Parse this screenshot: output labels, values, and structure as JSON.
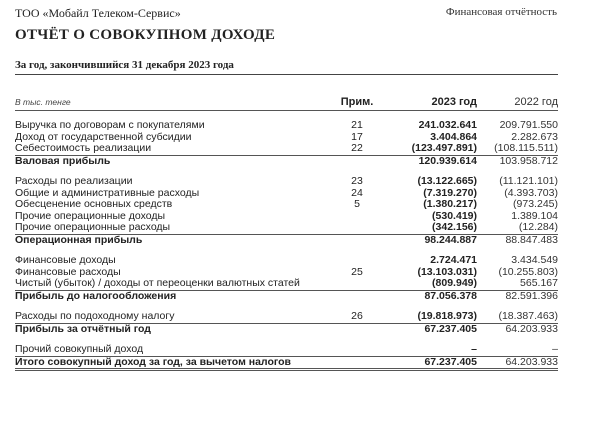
{
  "header": {
    "company": "ТОО «Мобайл Телеком-Сервис»",
    "section": "Финансовая отчётность"
  },
  "title": "ОТЧЁТ О СОВОКУПНОМ ДОХОДЕ",
  "subtitle": "За год, закончившийся 31 декабря 2023 года",
  "columns": {
    "unit": "В тыс. тенге",
    "note": "Прим.",
    "y2023": "2023 год",
    "y2022": "2022 год"
  },
  "rows": [
    {
      "label": "Выручка по договорам с покупателями",
      "note": "21",
      "y2023": "241.032.641",
      "y2022": "209.791.550"
    },
    {
      "label": "Доход от государственной субсидии",
      "note": "17",
      "y2023": "3.404.864",
      "y2022": "2.282.673"
    },
    {
      "label": "Себестоимость реализации",
      "note": "22",
      "y2023": "(123.497.891)",
      "y2022": "(108.115.511)"
    },
    {
      "label": "Валовая прибыль",
      "note": "",
      "y2023": "120.939.614",
      "y2022": "103.958.712"
    },
    {
      "label": "Расходы по реализации",
      "note": "23",
      "y2023": "(13.122.665)",
      "y2022": "(11.121.101)"
    },
    {
      "label": "Общие и административные расходы",
      "note": "24",
      "y2023": "(7.319.270)",
      "y2022": "(4.393.703)"
    },
    {
      "label": "Обесценение основных средств",
      "note": "5",
      "y2023": "(1.380.217)",
      "y2022": "(973.245)"
    },
    {
      "label": "Прочие операционные доходы",
      "note": "",
      "y2023": "(530.419)",
      "y2022": "1.389.104"
    },
    {
      "label": "Прочие операционные расходы",
      "note": "",
      "y2023": "(342.156)",
      "y2022": "(12.284)"
    },
    {
      "label": "Операционная прибыль",
      "note": "",
      "y2023": "98.244.887",
      "y2022": "88.847.483"
    },
    {
      "label": "Финансовые доходы",
      "note": "",
      "y2023": "2.724.471",
      "y2022": "3.434.549"
    },
    {
      "label": "Финансовые расходы",
      "note": "25",
      "y2023": "(13.103.031)",
      "y2022": "(10.255.803)"
    },
    {
      "label": "Чистый (убыток) / доходы от переоценки валютных статей",
      "note": "",
      "y2023": "(809.949)",
      "y2022": "565.167"
    },
    {
      "label": "Прибыль до налогообложения",
      "note": "",
      "y2023": "87.056.378",
      "y2022": "82.591.396"
    },
    {
      "label": "Расходы по подоходному налогу",
      "note": "26",
      "y2023": "(19.818.973)",
      "y2022": "(18.387.463)"
    },
    {
      "label": "Прибыль за отчётный год",
      "note": "",
      "y2023": "67.237.405",
      "y2022": "64.203.933"
    },
    {
      "label": "Прочий совокупный доход",
      "note": "",
      "y2023": "–",
      "y2022": "–"
    },
    {
      "label": "Итого совокупный доход за год, за вычетом налогов",
      "note": "",
      "y2023": "67.237.405",
      "y2022": "64.203.933"
    }
  ]
}
